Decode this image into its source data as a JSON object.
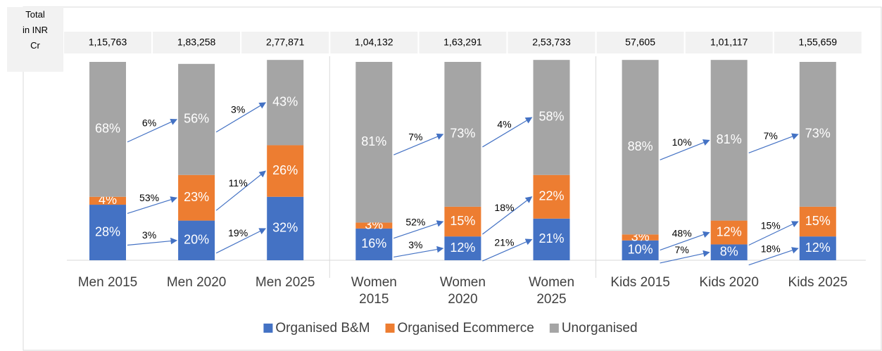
{
  "chart_data": {
    "type": "bar",
    "stacked": true,
    "total_label": "Total in INR Cr",
    "categories": [
      "Men 2015",
      "Men 2020",
      "Men 2025",
      "Women 2015",
      "Women 2020",
      "Women 2025",
      "Kids 2015",
      "Kids 2020",
      "Kids 2025"
    ],
    "totals": [
      {
        "value": 115763,
        "label": "1,15,763"
      },
      {
        "value": 183258,
        "label": "1,83,258"
      },
      {
        "value": 277871,
        "label": "2,77,871"
      },
      {
        "value": 104132,
        "label": "1,04,132"
      },
      {
        "value": 163291,
        "label": "1,63,291"
      },
      {
        "value": 253733,
        "label": "2,53,733"
      },
      {
        "value": 57605,
        "label": "57,605"
      },
      {
        "value": 101117,
        "label": "1,01,117"
      },
      {
        "value": 155659,
        "label": "1,55,659"
      }
    ],
    "ylim": [
      0,
      100
    ],
    "series": [
      {
        "name": "Organised B&M",
        "color": "#4472c4",
        "values": [
          28,
          20,
          32,
          16,
          12,
          21,
          10,
          8,
          12
        ],
        "value_labels": [
          "28%",
          "20%",
          "32%",
          "16%",
          "12%",
          "21%",
          "10%",
          "8%",
          "12%"
        ],
        "growth": [
          3,
          19,
          3,
          21,
          7,
          18
        ],
        "growth_labels": [
          "3%",
          "19%",
          "3%",
          "21%",
          "7%",
          "18%"
        ]
      },
      {
        "name": "Organised Ecommerce",
        "color": "#ed7d31",
        "values": [
          4,
          23,
          26,
          3,
          15,
          22,
          3,
          12,
          15
        ],
        "value_labels": [
          "4%",
          "23%",
          "26%",
          "3%",
          "15%",
          "22%",
          "3%",
          "12%",
          "15%"
        ],
        "growth": [
          53,
          11,
          52,
          18,
          48,
          15
        ],
        "growth_labels": [
          "53%",
          "11%",
          "52%",
          "18%",
          "48%",
          "15%"
        ]
      },
      {
        "name": "Unorganised",
        "color": "#a5a5a5",
        "values": [
          68,
          56,
          43,
          81,
          73,
          58,
          88,
          81,
          73
        ],
        "value_labels": [
          "68%",
          "56%",
          "43%",
          "81%",
          "73%",
          "58%",
          "88%",
          "81%",
          "73%"
        ],
        "growth": [
          6,
          3,
          7,
          4,
          10,
          7
        ],
        "growth_labels": [
          "6%",
          "3%",
          "7%",
          "4%",
          "10%",
          "7%"
        ]
      }
    ],
    "legend": "bottom"
  }
}
